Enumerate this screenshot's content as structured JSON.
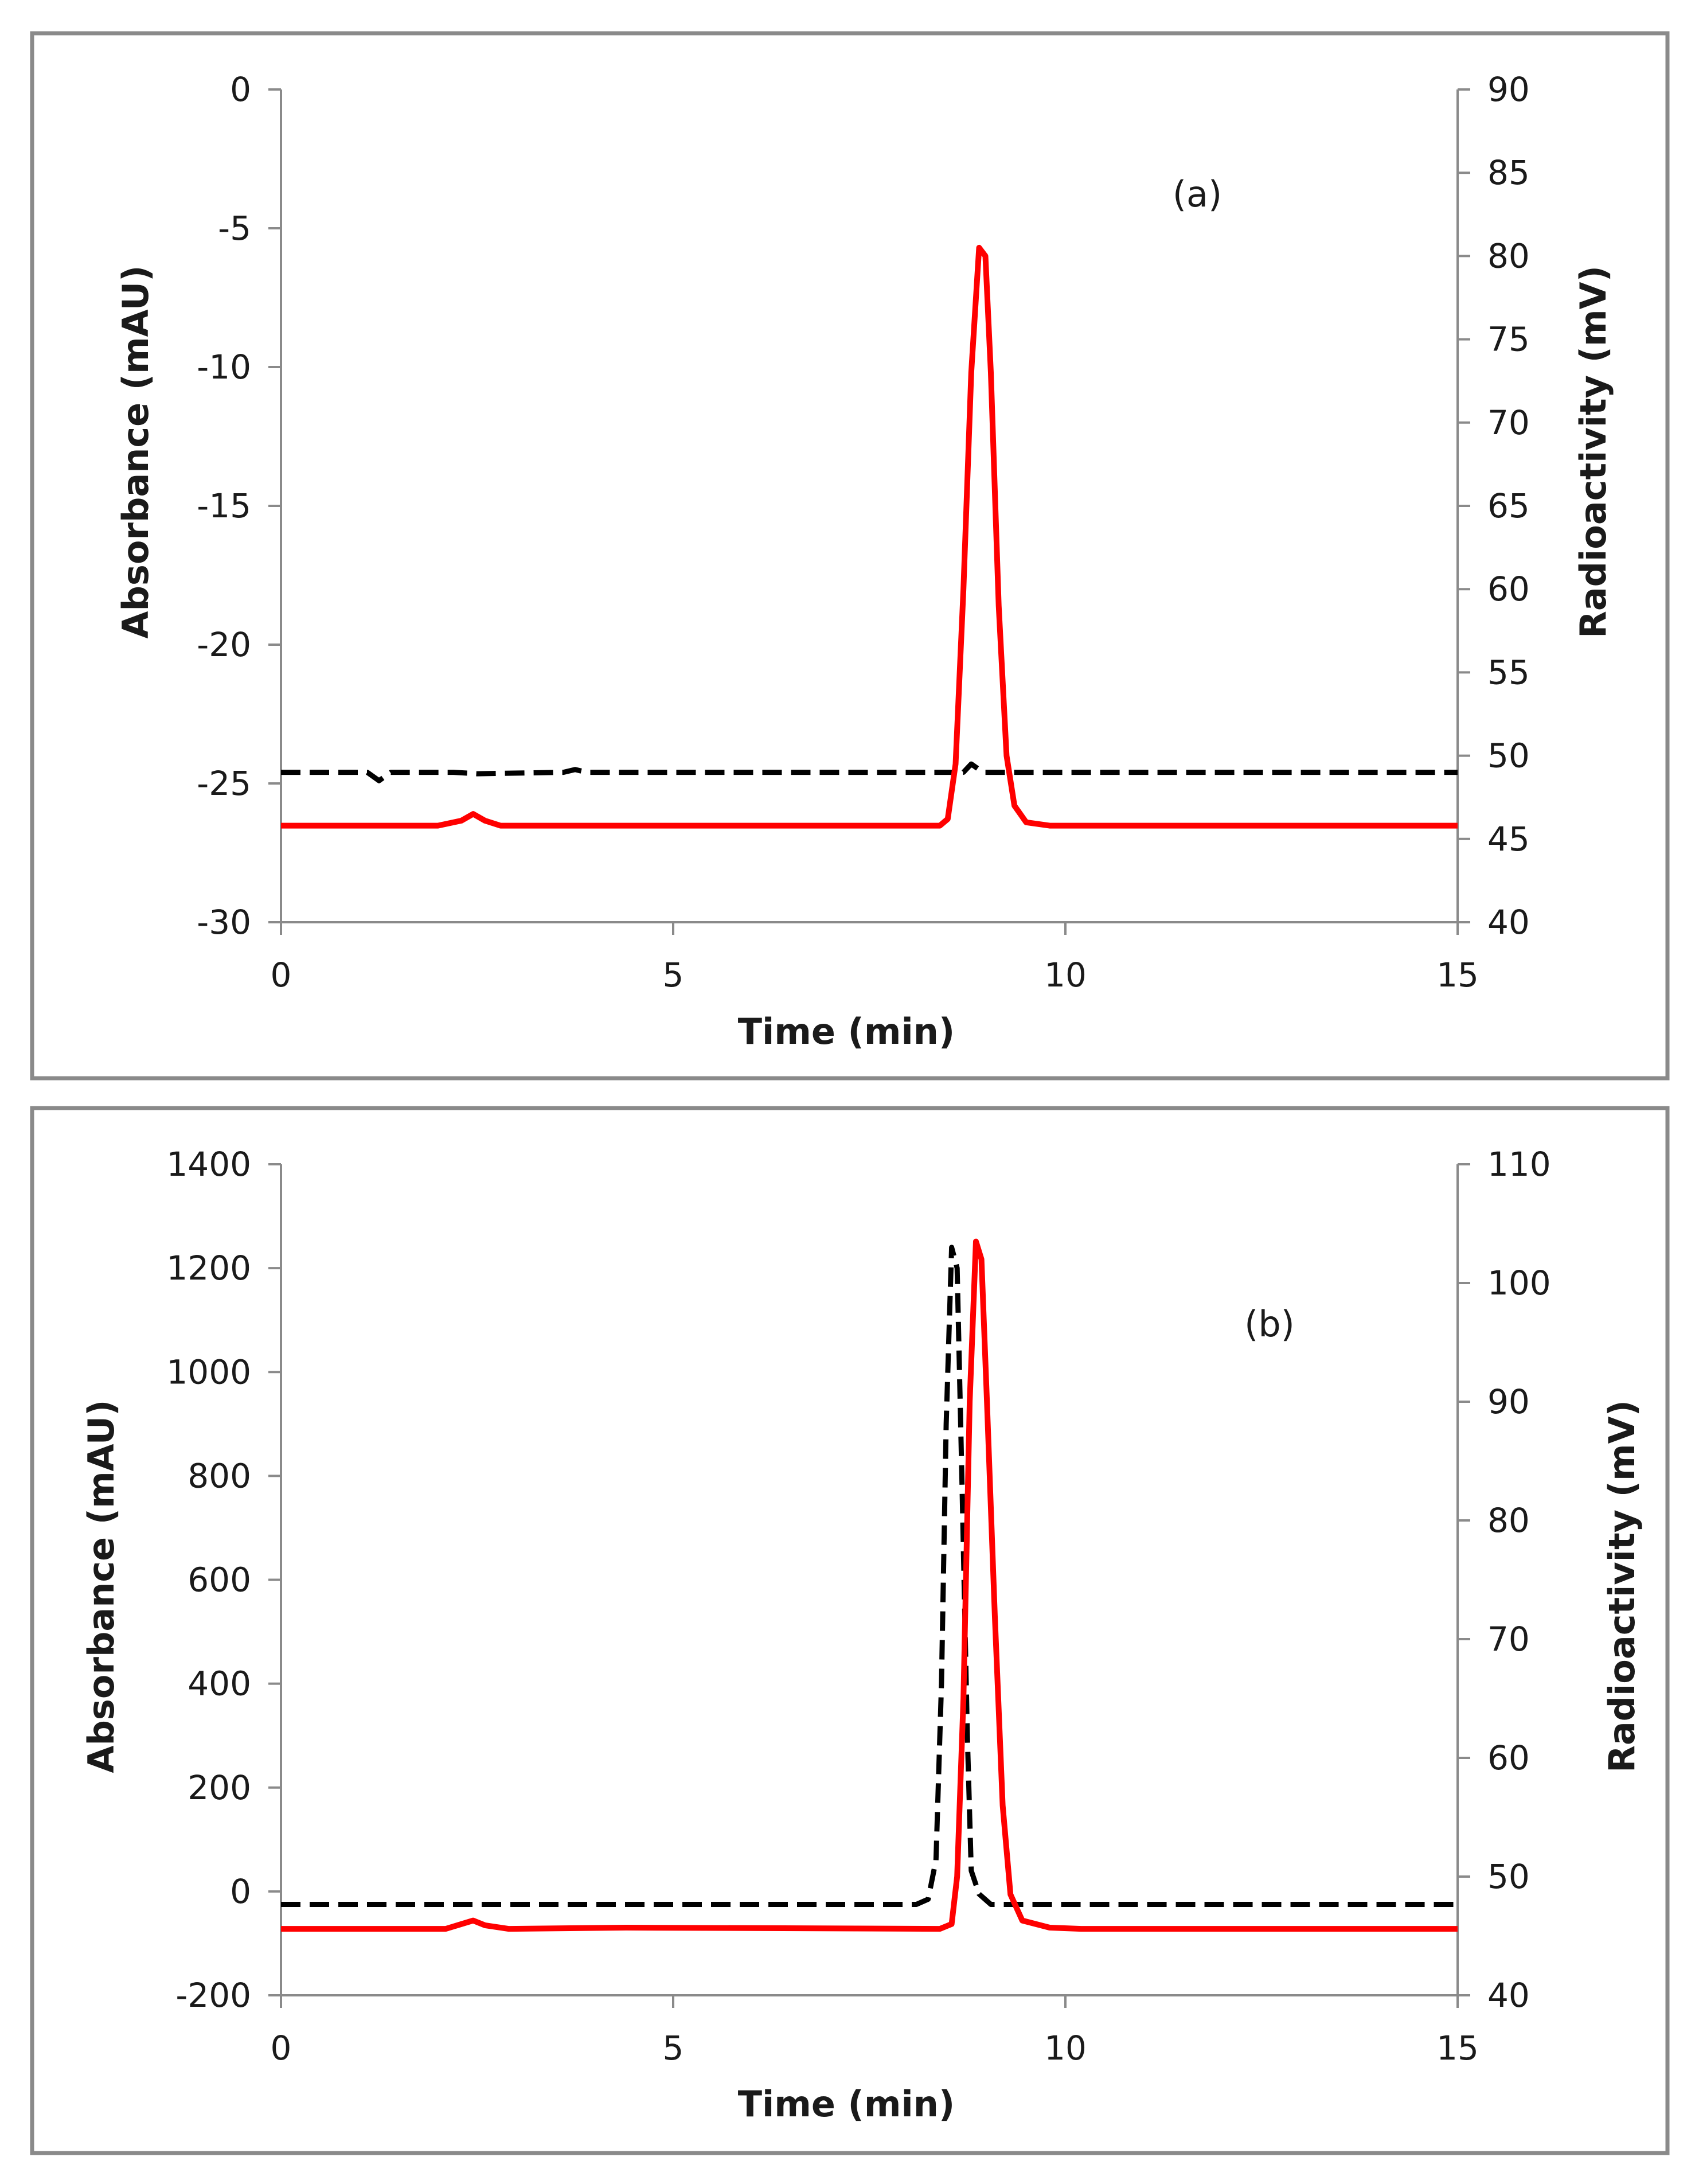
{
  "figure": {
    "colors": {
      "absorbance": "#000000",
      "radioactivity": "#ff0000",
      "frame": "#8a8a8a",
      "axis": "#8a8a8a"
    }
  },
  "chart_data": [
    {
      "type": "line",
      "panel_label": "(a)",
      "xlabel": "Time (min)",
      "ylabel": "Absorbance (mAU)",
      "y2label": "Radioactivity (mV)",
      "xlim": [
        0,
        15
      ],
      "ylim": [
        -30,
        0
      ],
      "y2lim": [
        40,
        90
      ],
      "xticks": [
        0,
        5,
        10,
        15
      ],
      "yticks": [
        0,
        -5,
        -10,
        -15,
        -20,
        -25,
        -30
      ],
      "y2ticks": [
        90,
        85,
        80,
        75,
        70,
        65,
        60,
        55,
        50,
        45,
        40
      ],
      "series": [
        {
          "name": "Absorbance",
          "axis": "left",
          "color": "#000000",
          "dash": "dashed",
          "points": [
            [
              0,
              -24.6
            ],
            [
              1.1,
              -24.6
            ],
            [
              1.25,
              -24.9
            ],
            [
              1.4,
              -24.6
            ],
            [
              2.2,
              -24.6
            ],
            [
              2.5,
              -24.65
            ],
            [
              3.6,
              -24.6
            ],
            [
              3.75,
              -24.5
            ],
            [
              3.9,
              -24.6
            ],
            [
              8.5,
              -24.6
            ],
            [
              8.7,
              -24.6
            ],
            [
              8.8,
              -24.3
            ],
            [
              8.95,
              -24.6
            ],
            [
              15,
              -24.6
            ]
          ]
        },
        {
          "name": "Radioactivity",
          "axis": "right",
          "color": "#ff0000",
          "dash": "solid",
          "points": [
            [
              0,
              45.8
            ],
            [
              2.0,
              45.8
            ],
            [
              2.3,
              46.1
            ],
            [
              2.45,
              46.5
            ],
            [
              2.6,
              46.1
            ],
            [
              2.8,
              45.8
            ],
            [
              3.7,
              45.8
            ],
            [
              8.4,
              45.8
            ],
            [
              8.5,
              46.2
            ],
            [
              8.6,
              49.5
            ],
            [
              8.7,
              60
            ],
            [
              8.8,
              73
            ],
            [
              8.9,
              80.5
            ],
            [
              8.98,
              80
            ],
            [
              9.05,
              73
            ],
            [
              9.15,
              59
            ],
            [
              9.25,
              50
            ],
            [
              9.35,
              47
            ],
            [
              9.5,
              46
            ],
            [
              9.8,
              45.8
            ],
            [
              15,
              45.8
            ]
          ]
        }
      ]
    },
    {
      "type": "line",
      "panel_label": "(b)",
      "xlabel": "Time (min)",
      "ylabel": "Absorbance (mAU)",
      "y2label": "Radioactivity (mV)",
      "xlim": [
        0,
        15
      ],
      "ylim": [
        -200,
        1400
      ],
      "y2lim": [
        40,
        110
      ],
      "xticks": [
        0,
        5,
        10,
        15
      ],
      "yticks": [
        1400,
        1200,
        1000,
        800,
        600,
        400,
        200,
        0,
        -200
      ],
      "y2ticks": [
        110,
        100,
        90,
        80,
        70,
        60,
        50,
        40
      ],
      "series": [
        {
          "name": "Absorbance",
          "axis": "left",
          "color": "#000000",
          "dash": "dashed",
          "points": [
            [
              0,
              -25
            ],
            [
              8.1,
              -25
            ],
            [
              8.25,
              -15
            ],
            [
              8.35,
              60
            ],
            [
              8.42,
              400
            ],
            [
              8.48,
              900
            ],
            [
              8.55,
              1240
            ],
            [
              8.62,
              1200
            ],
            [
              8.68,
              800
            ],
            [
              8.75,
              300
            ],
            [
              8.8,
              40
            ],
            [
              8.9,
              -5
            ],
            [
              9.05,
              -25
            ],
            [
              15,
              -25
            ]
          ]
        },
        {
          "name": "Radioactivity",
          "axis": "right",
          "color": "#ff0000",
          "dash": "solid",
          "points": [
            [
              0,
              45.6
            ],
            [
              2.1,
              45.6
            ],
            [
              2.3,
              46.0
            ],
            [
              2.45,
              46.3
            ],
            [
              2.6,
              45.9
            ],
            [
              2.9,
              45.6
            ],
            [
              4.4,
              45.7
            ],
            [
              8.4,
              45.6
            ],
            [
              8.55,
              46
            ],
            [
              8.62,
              50
            ],
            [
              8.7,
              65
            ],
            [
              8.78,
              90
            ],
            [
              8.86,
              103.5
            ],
            [
              8.93,
              102
            ],
            [
              9.0,
              90
            ],
            [
              9.1,
              72
            ],
            [
              9.2,
              56
            ],
            [
              9.3,
              48.5
            ],
            [
              9.45,
              46.3
            ],
            [
              9.8,
              45.7
            ],
            [
              10.2,
              45.6
            ],
            [
              15,
              45.6
            ]
          ]
        }
      ]
    }
  ]
}
